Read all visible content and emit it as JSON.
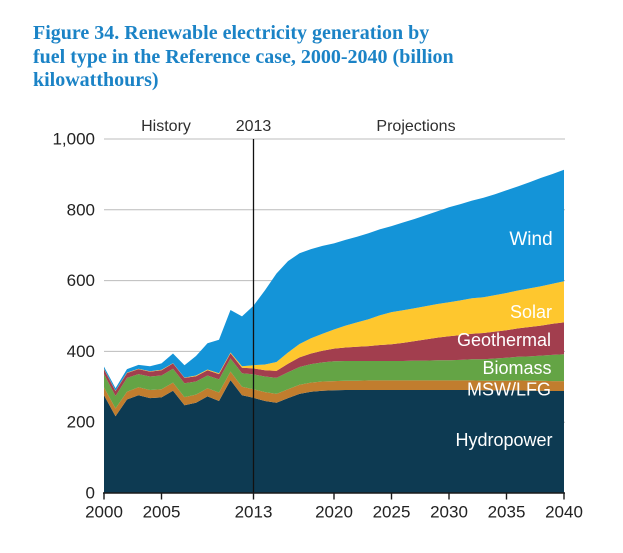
{
  "figure": {
    "title_lines": [
      "Figure 34. Renewable electricity generation by",
      "fuel type in the Reference case, 2000-2040 (billion",
      "kilowatthours)"
    ]
  },
  "annotations": {
    "history": "History",
    "divider_year": "2013",
    "projections": "Projections"
  },
  "chart_data": {
    "type": "area",
    "stacked": true,
    "title": "Figure 34. Renewable electricity generation by fuel type in the Reference case, 2000-2040 (billion kilowatthours)",
    "unit": "billion kilowatthours",
    "xlabel": "",
    "ylabel": "",
    "ylim": [
      0,
      1000
    ],
    "yticks": [
      0,
      200,
      400,
      600,
      800,
      1000
    ],
    "ytick_labels": [
      "0",
      "200",
      "400",
      "600",
      "800",
      "1,000"
    ],
    "xticks": [
      2000,
      2005,
      2013,
      2020,
      2025,
      2030,
      2035,
      2040
    ],
    "xtick_labels": [
      "2000",
      "2005",
      "2013",
      "2020",
      "2025",
      "2030",
      "2035",
      "2040"
    ],
    "grid": true,
    "vline_x": 2013,
    "legend_position": "labels-inside-areas",
    "x": [
      2000,
      2001,
      2002,
      2003,
      2004,
      2005,
      2006,
      2007,
      2008,
      2009,
      2010,
      2011,
      2012,
      2013,
      2014,
      2015,
      2016,
      2017,
      2018,
      2019,
      2020,
      2021,
      2022,
      2023,
      2024,
      2025,
      2026,
      2027,
      2028,
      2029,
      2030,
      2031,
      2032,
      2033,
      2034,
      2035,
      2036,
      2037,
      2038,
      2039,
      2040
    ],
    "series": [
      {
        "name": "Hydropower",
        "color": "#0d3a52",
        "values": [
          276,
          217,
          264,
          276,
          268,
          270,
          289,
          248,
          255,
          273,
          260,
          319,
          276,
          269,
          260,
          255,
          268,
          280,
          286,
          289,
          290,
          291,
          291,
          291,
          291,
          291,
          291,
          291,
          291,
          291,
          291,
          291,
          291,
          290,
          290,
          290,
          290,
          289,
          289,
          288,
          288
        ]
      },
      {
        "name": "MSW/LFG",
        "color": "#c17d2e",
        "values": [
          22,
          22,
          22,
          23,
          23,
          23,
          23,
          23,
          23,
          23,
          24,
          24,
          24,
          24,
          25,
          25,
          25,
          26,
          26,
          26,
          26,
          26,
          26,
          27,
          27,
          27,
          27,
          27,
          27,
          27,
          27,
          27,
          27,
          27,
          27,
          27,
          28,
          28,
          28,
          28,
          28
        ]
      },
      {
        "name": "Biomass",
        "color": "#64a445",
        "values": [
          38,
          35,
          39,
          37,
          38,
          39,
          39,
          39,
          37,
          36,
          37,
          37,
          38,
          42,
          44,
          45,
          48,
          50,
          52,
          54,
          56,
          56,
          56,
          55,
          55,
          55,
          55,
          56,
          56,
          57,
          57,
          58,
          60,
          61,
          63,
          65,
          67,
          69,
          71,
          74,
          76
        ]
      },
      {
        "name": "Geothermal",
        "color": "#a23e4e",
        "values": [
          14,
          14,
          14,
          14,
          14,
          15,
          15,
          15,
          15,
          15,
          15,
          15,
          16,
          17,
          18,
          20,
          24,
          27,
          30,
          33,
          36,
          38,
          40,
          42,
          45,
          47,
          51,
          55,
          60,
          64,
          68,
          70,
          72,
          74,
          76,
          78,
          80,
          83,
          85,
          88,
          90
        ]
      },
      {
        "name": "Solar",
        "color": "#fec72e",
        "values": [
          1,
          1,
          1,
          1,
          1,
          1,
          1,
          1,
          2,
          2,
          2,
          2,
          4,
          9,
          16,
          25,
          32,
          38,
          43,
          48,
          54,
          62,
          69,
          76,
          84,
          91,
          92,
          93,
          94,
          95,
          96,
          98,
          100,
          101,
          103,
          105,
          107,
          109,
          111,
          113,
          116
        ]
      },
      {
        "name": "Wind",
        "color": "#1494d8",
        "values": [
          6,
          7,
          10,
          11,
          14,
          18,
          27,
          35,
          55,
          74,
          95,
          120,
          141,
          168,
          210,
          250,
          258,
          256,
          252,
          248,
          243,
          242,
          242,
          243,
          243,
          243,
          248,
          252,
          257,
          262,
          268,
          272,
          276,
          281,
          285,
          290,
          294,
          300,
          306,
          310,
          315
        ]
      }
    ],
    "colors": {
      "grid": "#bcbcbc",
      "axis": "#1a1a1a",
      "vline": "#111111",
      "tick_text": "#222222",
      "series_label_text": "#ffffff",
      "title_text": "#1b83c6"
    }
  }
}
